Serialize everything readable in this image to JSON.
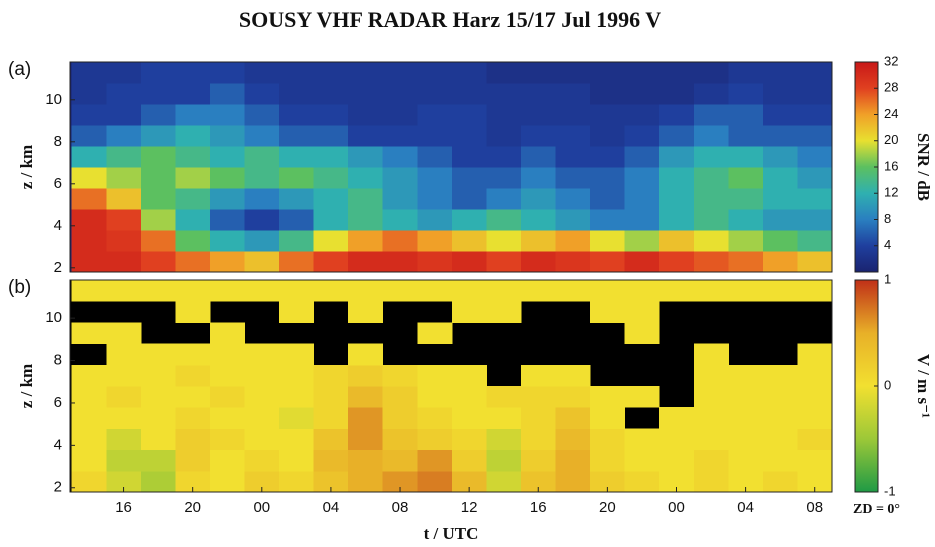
{
  "chart_data": [
    {
      "type": "heatmap",
      "title": "SOUSY VHF RADAR     Harz  15/17 Jul 1996  V",
      "panel_label": "(a)",
      "y_label": "z / km",
      "xlim": [
        12.9,
        57
      ],
      "ylim": [
        1.8,
        11.8
      ],
      "yticks": [
        2,
        4,
        6,
        8,
        10
      ],
      "x_edges": [
        13,
        15,
        17,
        19,
        21,
        23,
        25,
        27,
        29,
        31,
        33,
        35,
        37,
        39,
        41,
        43,
        45,
        47,
        49,
        51,
        53,
        55,
        57
      ],
      "y_edges": [
        1.8,
        2.8,
        3.8,
        4.8,
        5.8,
        6.8,
        7.8,
        8.8,
        9.8,
        10.8,
        11.8
      ],
      "values": [
        [
          30,
          30,
          28,
          26,
          24,
          22,
          26,
          28,
          30,
          30,
          29,
          30,
          28,
          30,
          29,
          28,
          30,
          28,
          27,
          26,
          24,
          22
        ],
        [
          30,
          29,
          26,
          16,
          12,
          10,
          14,
          20,
          24,
          26,
          24,
          22,
          20,
          22,
          24,
          20,
          18,
          22,
          20,
          18,
          16,
          14
        ],
        [
          30,
          28,
          18,
          12,
          6,
          4,
          6,
          12,
          14,
          12,
          10,
          12,
          14,
          12,
          10,
          8,
          8,
          12,
          14,
          12,
          10,
          10
        ],
        [
          26,
          22,
          16,
          14,
          10,
          8,
          10,
          12,
          14,
          10,
          8,
          6,
          8,
          10,
          8,
          6,
          8,
          12,
          14,
          14,
          12,
          12
        ],
        [
          20,
          18,
          16,
          18,
          16,
          14,
          16,
          14,
          12,
          10,
          8,
          6,
          6,
          8,
          6,
          6,
          8,
          12,
          14,
          16,
          12,
          10
        ],
        [
          12,
          14,
          16,
          14,
          12,
          14,
          12,
          12,
          10,
          8,
          6,
          4,
          4,
          6,
          4,
          4,
          6,
          10,
          12,
          12,
          10,
          8
        ],
        [
          6,
          8,
          10,
          12,
          10,
          8,
          6,
          6,
          4,
          4,
          4,
          4,
          3,
          4,
          4,
          3,
          4,
          6,
          8,
          6,
          6,
          6
        ],
        [
          4,
          4,
          6,
          8,
          8,
          6,
          4,
          4,
          3,
          3,
          4,
          4,
          3,
          3,
          3,
          3,
          3,
          4,
          6,
          6,
          4,
          4
        ],
        [
          3,
          4,
          4,
          4,
          6,
          4,
          3,
          3,
          3,
          3,
          3,
          3,
          3,
          3,
          3,
          2,
          2,
          2,
          3,
          4,
          3,
          3
        ],
        [
          3,
          3,
          4,
          4,
          4,
          3,
          3,
          3,
          3,
          3,
          3,
          3,
          2,
          2,
          2,
          2,
          2,
          2,
          2,
          3,
          3,
          3
        ]
      ],
      "missing_color": "#1a2370",
      "colorbar": {
        "label": "SNR / dB",
        "lim": [
          0,
          32
        ],
        "ticks": [
          4,
          8,
          12,
          16,
          20,
          24,
          28,
          32
        ],
        "colormap": [
          "#1a2370",
          "#1f3f9e",
          "#2a7fc0",
          "#2fb0b0",
          "#5cc060",
          "#e8e030",
          "#f0a028",
          "#e04020",
          "#c81818"
        ]
      }
    },
    {
      "type": "heatmap",
      "panel_label": "(b)",
      "y_label": "z / km",
      "x_label": "t / UTC",
      "annotation": "ZD = 0°",
      "xlim": [
        12.9,
        57
      ],
      "ylim": [
        1.8,
        11.8
      ],
      "yticks": [
        2,
        4,
        6,
        8,
        10
      ],
      "xticks": [
        16,
        20,
        {
          "value": 24,
          "label": "00"
        },
        {
          "value": 28,
          "label": "04"
        },
        {
          "value": 32,
          "label": "08"
        },
        {
          "value": 36,
          "label": "12"
        },
        {
          "value": 40,
          "label": "16"
        },
        {
          "value": 44,
          "label": "20"
        },
        {
          "value": 48,
          "label": "00"
        },
        {
          "value": 52,
          "label": "04"
        },
        {
          "value": 56,
          "label": "08"
        }
      ],
      "x_edges": [
        13,
        15,
        17,
        19,
        21,
        23,
        25,
        27,
        29,
        31,
        33,
        35,
        37,
        39,
        41,
        43,
        45,
        47,
        49,
        51,
        53,
        55,
        57
      ],
      "y_edges": [
        1.8,
        2.8,
        3.8,
        4.8,
        5.8,
        6.8,
        7.8,
        8.8,
        9.8,
        10.8,
        11.8
      ],
      "values": [
        [
          0.1,
          -0.2,
          -0.4,
          0.1,
          0,
          0.2,
          0.1,
          0.3,
          0.5,
          0.6,
          0.7,
          0.4,
          -0.2,
          0.3,
          0.5,
          0.2,
          0.1,
          0,
          0.1,
          0,
          0.1,
          0
        ],
        [
          0,
          -0.3,
          -0.3,
          0.2,
          0,
          0.1,
          0,
          0.4,
          0.5,
          0.4,
          0.6,
          0.2,
          -0.3,
          0.2,
          0.5,
          0.1,
          0,
          0,
          0.1,
          0,
          0,
          0
        ],
        [
          0,
          -0.2,
          0,
          0.2,
          0.1,
          0,
          0,
          0.3,
          0.6,
          0.3,
          0.2,
          0.1,
          -0.2,
          0.1,
          0.4,
          0.1,
          0,
          0,
          0,
          0,
          0,
          0.1
        ],
        [
          0,
          0,
          0,
          0.1,
          0,
          0,
          -0.1,
          0.1,
          0.6,
          0.2,
          0.1,
          0,
          0,
          0.1,
          0.3,
          0,
          null,
          0,
          0,
          0,
          0,
          0
        ],
        [
          0,
          0.1,
          0,
          0,
          0.1,
          0,
          0,
          0.1,
          0.4,
          0.2,
          0,
          0,
          0.1,
          0.1,
          0.1,
          0,
          0,
          null,
          0,
          0,
          0,
          0
        ],
        [
          0,
          0,
          0,
          0.1,
          0,
          0,
          0,
          0.1,
          0.2,
          0.1,
          0,
          0,
          null,
          0,
          0,
          null,
          null,
          null,
          0,
          0,
          0,
          0
        ],
        [
          null,
          0,
          0,
          0,
          0,
          0,
          0,
          null,
          0,
          null,
          null,
          null,
          null,
          null,
          null,
          null,
          null,
          null,
          0,
          null,
          null,
          0
        ],
        [
          0,
          0,
          null,
          null,
          0,
          null,
          null,
          null,
          null,
          null,
          0,
          null,
          null,
          null,
          null,
          null,
          0,
          null,
          null,
          null,
          null,
          null
        ],
        [
          null,
          null,
          null,
          0,
          null,
          null,
          0,
          null,
          0,
          null,
          null,
          0,
          0,
          null,
          null,
          0,
          0,
          null,
          null,
          null,
          null,
          null
        ],
        [
          0,
          0,
          0,
          0,
          0,
          0,
          0,
          0,
          0,
          0,
          0,
          0,
          0,
          0,
          0,
          0,
          0,
          0,
          0,
          0,
          0,
          0
        ]
      ],
      "missing_color": "#000000",
      "colorbar": {
        "label": "V / m s⁻¹",
        "lim": [
          -1,
          1
        ],
        "ticks": [
          -1,
          0,
          1
        ],
        "colormap": [
          "#1f9a45",
          "#9cc838",
          "#f2e030",
          "#e8b028",
          "#c03018"
        ]
      }
    }
  ]
}
